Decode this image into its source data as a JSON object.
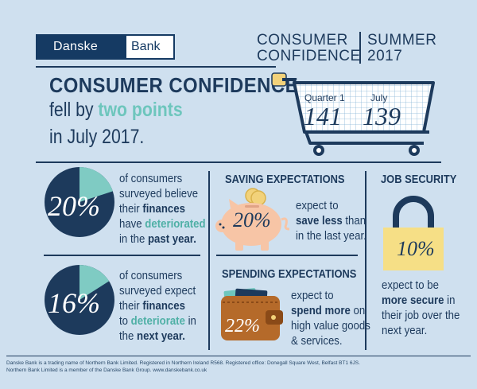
{
  "logo": {
    "left": "Danske",
    "right": "Bank"
  },
  "header": {
    "line1a": "CONSUMER",
    "line1b": "CONFIDENCE",
    "line2a": "SUMMER",
    "line2b": "2017"
  },
  "headline": {
    "title": "CONSUMER CONFIDENCE",
    "line2_pre": "fell by ",
    "line2_em": "two points",
    "line3": "in July 2017."
  },
  "cart": {
    "label_q1": "Quarter 1",
    "label_july": "July",
    "value_q1": "141",
    "value_july": "139"
  },
  "finances_past": {
    "pct": "20%",
    "fraction": 0.2,
    "l1": "of consumers",
    "l2": "surveyed believe",
    "l3a": "their ",
    "l3b": "finances",
    "l4a": "have ",
    "l4b": "deteriorated",
    "l5a": "in the ",
    "l5b": "past year."
  },
  "finances_next": {
    "pct": "16%",
    "fraction": 0.16,
    "l1": "of consumers",
    "l2": "surveyed expect",
    "l3a": "their ",
    "l3b": "finances",
    "l4a": "to ",
    "l4b": "deteriorate",
    "l4c": " in",
    "l5a": "the ",
    "l5b": "next year."
  },
  "saving": {
    "title": "SAVING EXPECTATIONS",
    "pct": "20%",
    "l1": "expect to",
    "l2a": "save less",
    "l2b": " than",
    "l3": "in the last year."
  },
  "spending": {
    "title": "SPENDING EXPECTATIONS",
    "pct": "22%",
    "l1": "expect to",
    "l2a": "spend more",
    "l2b": " on",
    "l3": "high value goods",
    "l4": "& services."
  },
  "job": {
    "title": "JOB SECURITY",
    "pct": "10%",
    "l1": "expect to be",
    "l2a": "more secure",
    "l2b": " in",
    "l3": "their job over the",
    "l4": "next year."
  },
  "footer": {
    "l1": "Danske Bank is a trading name of Northern Bank Limited. Registered in Northern Ireland R568. Registered office: Donegall Square West, Belfast BT1 6JS.",
    "l2": "Northern Bank Limited is a member of the Danske Bank Group. www.danskebank.co.uk"
  },
  "colors": {
    "navy": "#1d3a5c",
    "teal": "#6ec6bd",
    "background": "#cfe0ef",
    "pig": "#f7c5a6",
    "coin": "#f2d27a",
    "lock_body": "#f6df86",
    "wallet": "#b56a2a"
  }
}
